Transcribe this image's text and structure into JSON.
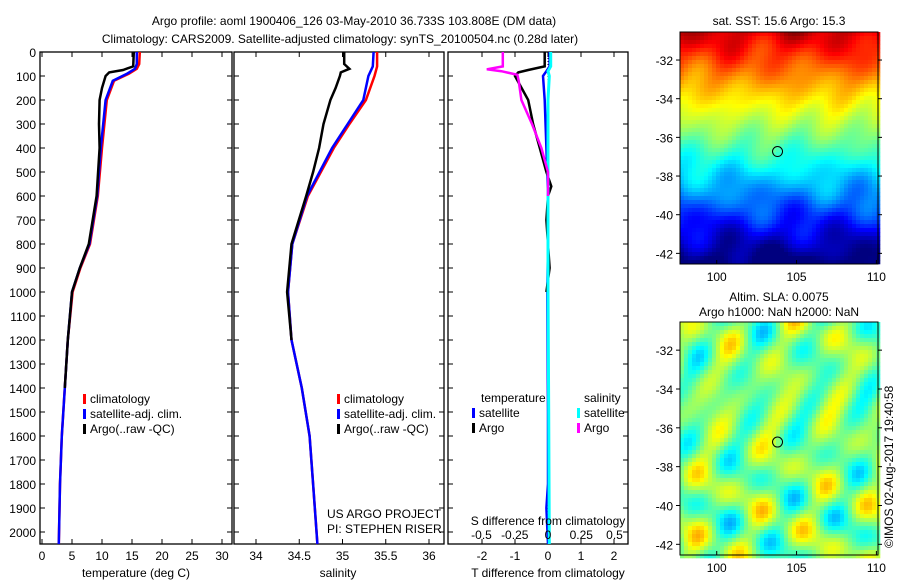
{
  "title_line1": "Argo profile: aoml 1900406_126 03-May-2010 36.733S 103.808E (DM data)",
  "title_line2": "Climatology: CARS2009. Satellite-adjusted climatology: synTS_20100504.nc (0.28d later)",
  "project_line1": "US ARGO PROJECT",
  "project_line2": "PI: STEPHEN RISER",
  "timestamp": "©IMOS 02-Aug-2017 19:40:58",
  "colors": {
    "climatology": "#ff0000",
    "satellite": "#0000ff",
    "argo": "#000000",
    "sal_satellite": "#00ffff",
    "sal_argo": "#ff00ff"
  },
  "chart_data": [
    {
      "type": "line",
      "name": "temperature-profile",
      "xlabel": "temperature (deg C)",
      "ylabel": "",
      "xlim": [
        -0.3,
        31.7
      ],
      "ylim": [
        2050,
        0
      ],
      "xticks": [
        0,
        5,
        10,
        15,
        20,
        25,
        30
      ],
      "yticks": [
        0,
        100,
        200,
        300,
        400,
        500,
        600,
        700,
        800,
        900,
        1000,
        1100,
        1200,
        1300,
        1400,
        1500,
        1600,
        1700,
        1800,
        1900,
        2000
      ],
      "legend": [
        "climatology",
        "satellite-adj. clim.",
        "Argo(..raw -QC)"
      ],
      "legend_position": "lower-center",
      "series": [
        {
          "name": "climatology",
          "color": "#ff0000",
          "depth": [
            0,
            50,
            70,
            90,
            120,
            200,
            400,
            600,
            800,
            900,
            1000,
            1200,
            1400,
            1600,
            1800,
            2050
          ],
          "values": [
            16.3,
            16.2,
            15.8,
            14.5,
            12,
            10.8,
            10,
            9.3,
            8,
            6.4,
            5.1,
            4.3,
            3.8,
            3.3,
            3.0,
            2.8
          ]
        },
        {
          "name": "satellite-adj. clim.",
          "color": "#0000ff",
          "depth": [
            0,
            50,
            70,
            90,
            120,
            200,
            400,
            600,
            800,
            900,
            1000,
            1200,
            1400,
            1600,
            1800,
            2050
          ],
          "values": [
            15.8,
            15.8,
            15.5,
            14.2,
            11.8,
            10.6,
            9.8,
            9.2,
            7.9,
            6.3,
            5.0,
            4.3,
            3.8,
            3.3,
            3.0,
            2.8
          ]
        },
        {
          "name": "Argo(..raw -QC)",
          "color": "#000000",
          "depth": [
            0,
            60,
            75,
            85,
            100,
            150,
            200,
            300,
            400,
            600,
            800,
            900,
            1000,
            1200,
            1400
          ],
          "values": [
            15.3,
            15.2,
            13.5,
            11.2,
            10.6,
            10,
            9.6,
            9.5,
            9.6,
            9.1,
            7.8,
            6.3,
            5.0,
            4.3,
            3.8
          ]
        }
      ]
    },
    {
      "type": "line",
      "name": "salinity-profile",
      "xlabel": "salinity",
      "xlim": [
        33.75,
        36.1
      ],
      "ylim": [
        2050,
        0
      ],
      "xticks": [
        34,
        34.5,
        35,
        35.5,
        36
      ],
      "legend": [
        "climatology",
        "satellite-adj. clim.",
        "Argo(..raw -QC)"
      ],
      "legend_position": "lower-center",
      "series": [
        {
          "name": "climatology",
          "color": "#ff0000",
          "depth": [
            0,
            60,
            100,
            200,
            300,
            400,
            600,
            800,
            1000,
            1200,
            1400,
            1600,
            1800,
            2050
          ],
          "values": [
            35.4,
            35.4,
            35.37,
            35.27,
            35.08,
            34.9,
            34.6,
            34.42,
            34.37,
            34.41,
            34.53,
            34.62,
            34.66,
            34.71
          ]
        },
        {
          "name": "satellite-adj. clim.",
          "color": "#0000ff",
          "depth": [
            0,
            60,
            100,
            200,
            300,
            400,
            600,
            800,
            1000,
            1200,
            1400,
            1600,
            1800,
            2050
          ],
          "values": [
            35.36,
            35.35,
            35.3,
            35.24,
            35.06,
            34.88,
            34.59,
            34.42,
            34.37,
            34.41,
            34.53,
            34.62,
            34.66,
            34.71
          ]
        },
        {
          "name": "Argo(..raw -QC)",
          "color": "#000000",
          "depth": [
            0,
            50,
            70,
            85,
            100,
            150,
            200,
            300,
            400,
            500,
            600,
            800,
            1000,
            1200
          ],
          "values": [
            35.02,
            35.02,
            35.08,
            34.98,
            34.97,
            34.92,
            34.86,
            34.78,
            34.73,
            34.66,
            34.58,
            34.41,
            34.36,
            34.41
          ]
        }
      ]
    },
    {
      "type": "line",
      "name": "difference-profile",
      "xlabel": "T difference from climatology",
      "x2label": "S difference from climatology",
      "xlim": [
        -3,
        2.5
      ],
      "x2lim": [
        -0.75,
        0.625
      ],
      "ylim": [
        2050,
        0
      ],
      "xticks": [
        -2,
        -1,
        0,
        1,
        2
      ],
      "x2ticks": [
        -0.5,
        -0.25,
        0,
        0.25,
        0.5
      ],
      "x2ticklabels": [
        "-0.5",
        "-0.25",
        "0",
        "0.25",
        "0.5"
      ],
      "legend_titles": [
        "temperature",
        "salinity"
      ],
      "legend": [
        "satellite",
        "Argo",
        "satellite",
        "Argo"
      ],
      "series": [
        {
          "name": "T satellite",
          "axis": "T",
          "color": "#0000ff",
          "depth": [
            0,
            60,
            80,
            100,
            200,
            400,
            600,
            800,
            1000,
            1500,
            1800,
            1900,
            2050
          ],
          "values": [
            0.05,
            0.05,
            -0.05,
            -0.15,
            -0.1,
            -0.05,
            0,
            0,
            -0.02,
            0,
            0,
            -0.05,
            0
          ]
        },
        {
          "name": "T Argo",
          "axis": "T",
          "color": "#000000",
          "depth": [
            0,
            60,
            75,
            85,
            100,
            150,
            200,
            300,
            400,
            500,
            560,
            600,
            700,
            800,
            900,
            1000
          ],
          "values": [
            -0.1,
            -0.1,
            -0.6,
            -0.9,
            -1.0,
            -0.8,
            -0.6,
            -0.45,
            -0.25,
            -0.05,
            0.1,
            0,
            -0.05,
            0,
            0.05,
            -0.05
          ]
        },
        {
          "name": "S satellite",
          "axis": "S",
          "color": "#00ffff",
          "depth": [
            0,
            60,
            80,
            100,
            200,
            400,
            600,
            1000,
            1500,
            2050
          ],
          "values": [
            0.02,
            0.02,
            0,
            0.01,
            0.0,
            0.0,
            0.0,
            0.0,
            0.005,
            0.01
          ]
        },
        {
          "name": "S Argo",
          "axis": "S",
          "color": "#ff00ff",
          "depth": [
            0,
            60,
            72,
            80,
            95,
            120,
            200,
            300,
            400,
            500,
            600
          ],
          "values": [
            -0.34,
            -0.34,
            -0.46,
            -0.35,
            -0.23,
            -0.22,
            -0.2,
            -0.12,
            -0.05,
            0,
            0
          ]
        }
      ]
    },
    {
      "type": "heatmap",
      "name": "sst-map",
      "title": "sat. SST: 15.6  Argo: 15.3",
      "xlim": [
        97.7,
        110.1
      ],
      "ylim": [
        -42.55,
        -30.55
      ],
      "xticks": [
        100,
        105,
        110
      ],
      "yticks": [
        -32,
        -34,
        -36,
        -38,
        -40,
        -42
      ],
      "field": "sst",
      "colormap": "jet",
      "marker": {
        "lon": 103.808,
        "lat": -36.733
      }
    },
    {
      "type": "heatmap",
      "name": "sla-map",
      "title": "Altim. SLA: 0.0075",
      "subtitle": "Argo h1000: NaN h2000: NaN",
      "xlim": [
        97.7,
        110.1
      ],
      "ylim": [
        -42.55,
        -30.55
      ],
      "xticks": [
        100,
        105,
        110
      ],
      "yticks": [
        -32,
        -34,
        -36,
        -38,
        -40,
        -42
      ],
      "field": "sla",
      "colormap": "jet",
      "marker": {
        "lon": 103.808,
        "lat": -36.733
      }
    }
  ]
}
